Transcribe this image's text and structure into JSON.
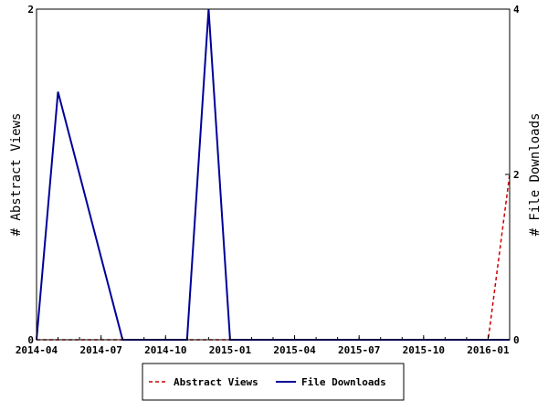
{
  "chart_data": {
    "type": "line",
    "title": "",
    "x_ticks": [
      "2014-04",
      "2014-07",
      "2014-10",
      "2015-01",
      "2015-04",
      "2015-07",
      "2015-10",
      "2016-01"
    ],
    "x_range": [
      "2014-04",
      "2016-02"
    ],
    "y_left": {
      "label": "# Abstract Views",
      "range": [
        0,
        2
      ],
      "ticks": [
        "0",
        "2"
      ]
    },
    "y_right": {
      "label": "# File Downloads",
      "range": [
        0,
        4
      ],
      "ticks": [
        "0",
        "2",
        "4"
      ]
    },
    "series": [
      {
        "name": "Abstract Views",
        "axis": "left",
        "color": "#cc0000",
        "style": "dashed",
        "x": [
          "2014-04",
          "2014-05",
          "2014-06",
          "2014-07",
          "2014-08",
          "2014-09",
          "2014-10",
          "2014-11",
          "2014-12",
          "2015-01",
          "2015-02",
          "2015-03",
          "2015-04",
          "2015-05",
          "2015-06",
          "2015-07",
          "2015-08",
          "2015-09",
          "2015-10",
          "2015-11",
          "2015-12",
          "2016-01",
          "2016-02"
        ],
        "y": [
          0,
          0,
          0,
          0,
          0,
          0,
          0,
          0,
          0,
          0,
          0,
          0,
          0,
          0,
          0,
          0,
          0,
          0,
          0,
          0,
          0,
          0,
          1
        ]
      },
      {
        "name": "File Downloads",
        "axis": "right",
        "color": "#000099",
        "style": "solid",
        "x": [
          "2014-04",
          "2014-05",
          "2014-06",
          "2014-07",
          "2014-08",
          "2014-09",
          "2014-10",
          "2014-11",
          "2014-12",
          "2015-01",
          "2015-02",
          "2015-03",
          "2015-04",
          "2015-05",
          "2015-06",
          "2015-07",
          "2015-08",
          "2015-09",
          "2015-10",
          "2015-11",
          "2015-12",
          "2016-01",
          "2016-02"
        ],
        "y": [
          0,
          3,
          2,
          1,
          0,
          0,
          0,
          0,
          4,
          0,
          0,
          0,
          0,
          0,
          0,
          0,
          0,
          0,
          0,
          0,
          0,
          0,
          0
        ]
      }
    ],
    "legend": {
      "position": "bottom-center",
      "entries": [
        "Abstract Views",
        "File Downloads"
      ]
    },
    "grid": false
  }
}
